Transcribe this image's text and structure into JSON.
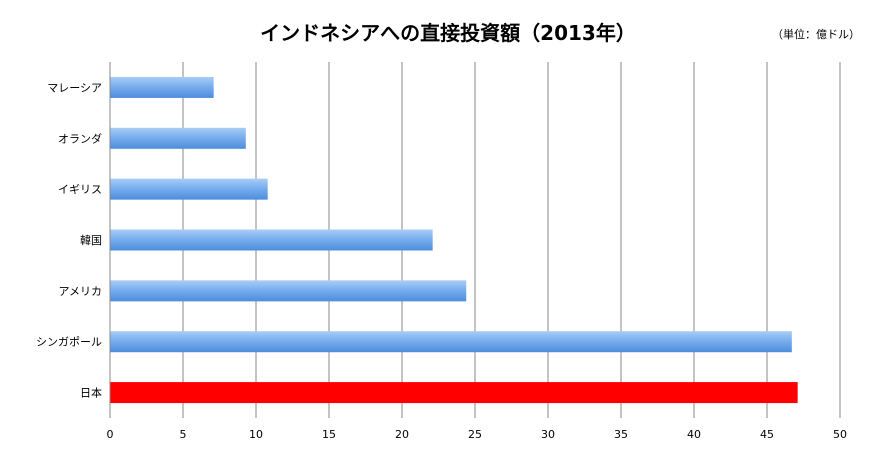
{
  "chart_data": {
    "type": "bar",
    "orientation": "horizontal",
    "title": "インドネシアへの直接投資額（2013年）",
    "unit_note": "（単位：億ドル）",
    "categories": [
      "マレーシア",
      "オランダ",
      "イギリス",
      "韓国",
      "アメリカ",
      "シンガポール",
      "日本"
    ],
    "values": [
      7.1,
      9.3,
      10.8,
      22.1,
      24.4,
      46.7,
      47.1
    ],
    "highlight_category": "日本",
    "xlim": [
      0,
      50
    ],
    "xticks": [
      0,
      5,
      10,
      15,
      20,
      25,
      30,
      35,
      40,
      45,
      50
    ],
    "grid": true,
    "legend": "none",
    "colors": {
      "bar": "#5f9be3",
      "bar_light": "#9cc4f5",
      "highlight": "#ff0000",
      "grid": "#888888",
      "text": "#000000"
    }
  }
}
